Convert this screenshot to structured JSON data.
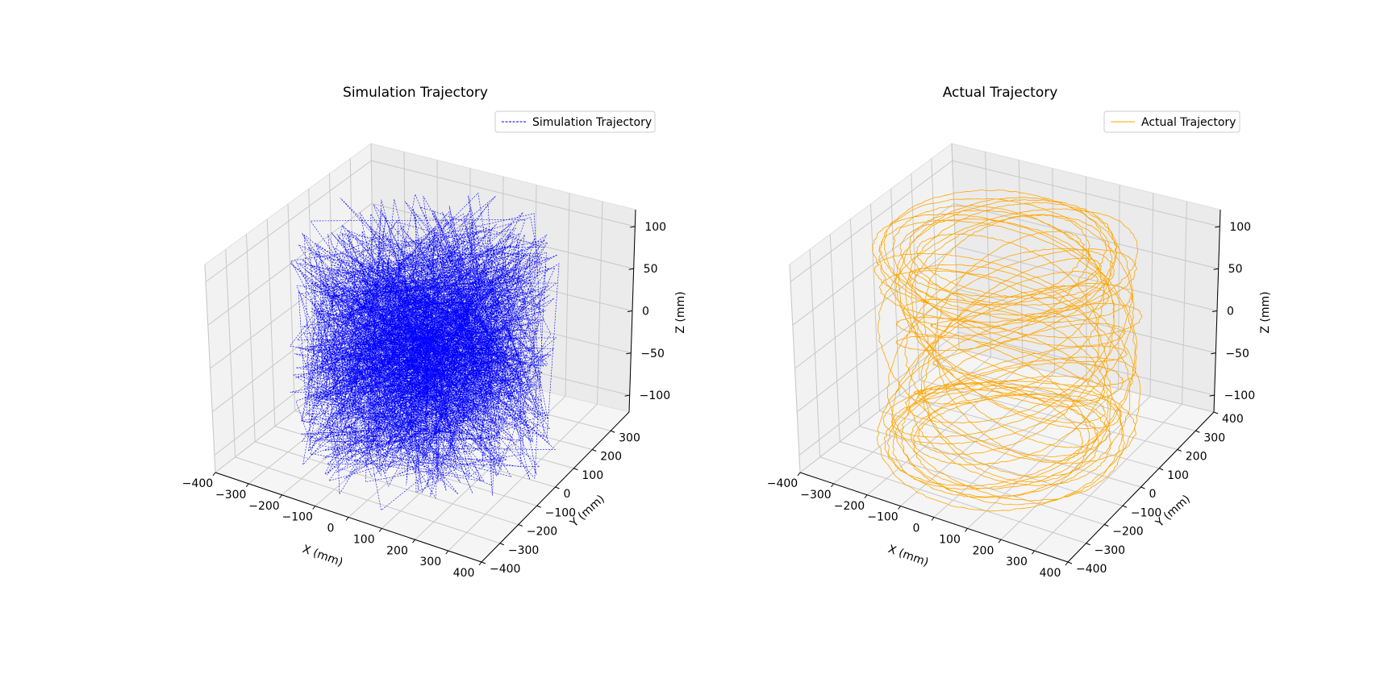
{
  "chart_data": [
    {
      "type": "line3d",
      "title": "Simulation Trajectory",
      "xlabel": "X (mm)",
      "ylabel": "Y (mm)",
      "zlabel": "Z (mm)",
      "xlim": [
        -400,
        400
      ],
      "ylim": [
        -400,
        400
      ],
      "zlim": [
        -120,
        120
      ],
      "x_ticks": [
        -400,
        -300,
        -200,
        -100,
        0,
        100,
        200,
        300,
        400
      ],
      "y_ticks": [
        -400,
        -300,
        -200,
        -100,
        0,
        100,
        200,
        300
      ],
      "z_ticks": [
        -100,
        -50,
        0,
        50,
        100
      ],
      "grid": true,
      "legend_position": "upper-right",
      "series": [
        {
          "name": "Simulation Trajectory",
          "color": "#0000ff",
          "style": "dashed",
          "description_radius_range_mm": [
            0,
            350
          ],
          "z_range_mm": [
            -120,
            120
          ]
        }
      ]
    },
    {
      "type": "line3d",
      "title": "Actual Trajectory",
      "xlabel": "X (mm)",
      "ylabel": "Y (mm)",
      "zlabel": "Z (mm)",
      "xlim": [
        -400,
        400
      ],
      "ylim": [
        -400,
        400
      ],
      "zlim": [
        -120,
        120
      ],
      "x_ticks": [
        -400,
        -300,
        -200,
        -100,
        0,
        100,
        200,
        300,
        400
      ],
      "y_ticks": [
        -400,
        -300,
        -200,
        -100,
        0,
        100,
        200,
        300,
        400
      ],
      "z_ticks": [
        -100,
        -50,
        0,
        50,
        100
      ],
      "grid": true,
      "legend_position": "upper-right",
      "series": [
        {
          "name": "Actual Trajectory",
          "color": "#ffa500",
          "style": "solid",
          "description_radius_range_mm": [
            250,
            350
          ],
          "z_range_mm": [
            -120,
            120
          ]
        }
      ]
    }
  ]
}
